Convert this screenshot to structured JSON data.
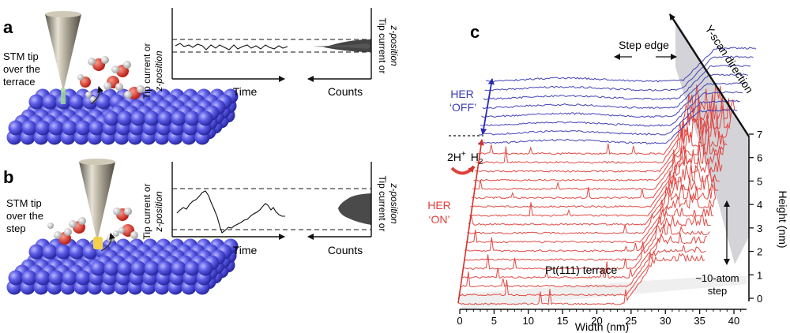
{
  "panel_a": {
    "letter": "a",
    "tip_label": [
      "STM tip",
      "over the",
      "terrace"
    ],
    "y_axis_left": [
      "Tip current or",
      "z-position"
    ],
    "y_axis_right": [
      "Tip current or",
      "z-position"
    ],
    "x_left": "Time",
    "x_right": "Counts"
  },
  "panel_b": {
    "letter": "b",
    "tip_label": [
      "STM tip",
      "over the",
      "step"
    ],
    "y_axis_left": [
      "Tip current or",
      "z-position"
    ],
    "y_axis_right": [
      "Tip current or",
      "z-position"
    ],
    "x_left": "Time",
    "x_right": "Counts"
  },
  "panel_c": {
    "letter": "c",
    "step_edge": "Step edge",
    "y_scan": "Y-scan direction",
    "her_off": [
      "HER",
      "‘OFF’"
    ],
    "her_on": [
      "HER",
      "‘ON’"
    ],
    "reaction_left": "2H",
    "reaction_sup": "+",
    "reaction_right": "H",
    "reaction_sub": "2",
    "terrace": "Pt(111) terrace",
    "step_note": [
      "~10-atom",
      "step"
    ],
    "x_label": "Width (nm)",
    "x_ticks": [
      "0",
      "5",
      "10",
      "15",
      "20",
      "25",
      "30",
      "35",
      "40"
    ],
    "y_label": "Height (nm)",
    "y_ticks": [
      "0",
      "1",
      "2",
      "3",
      "4",
      "5",
      "6",
      "7"
    ],
    "colors": {
      "off": "#3a3ab4",
      "on": "#e0413c",
      "atom": "#5656e0"
    }
  }
}
